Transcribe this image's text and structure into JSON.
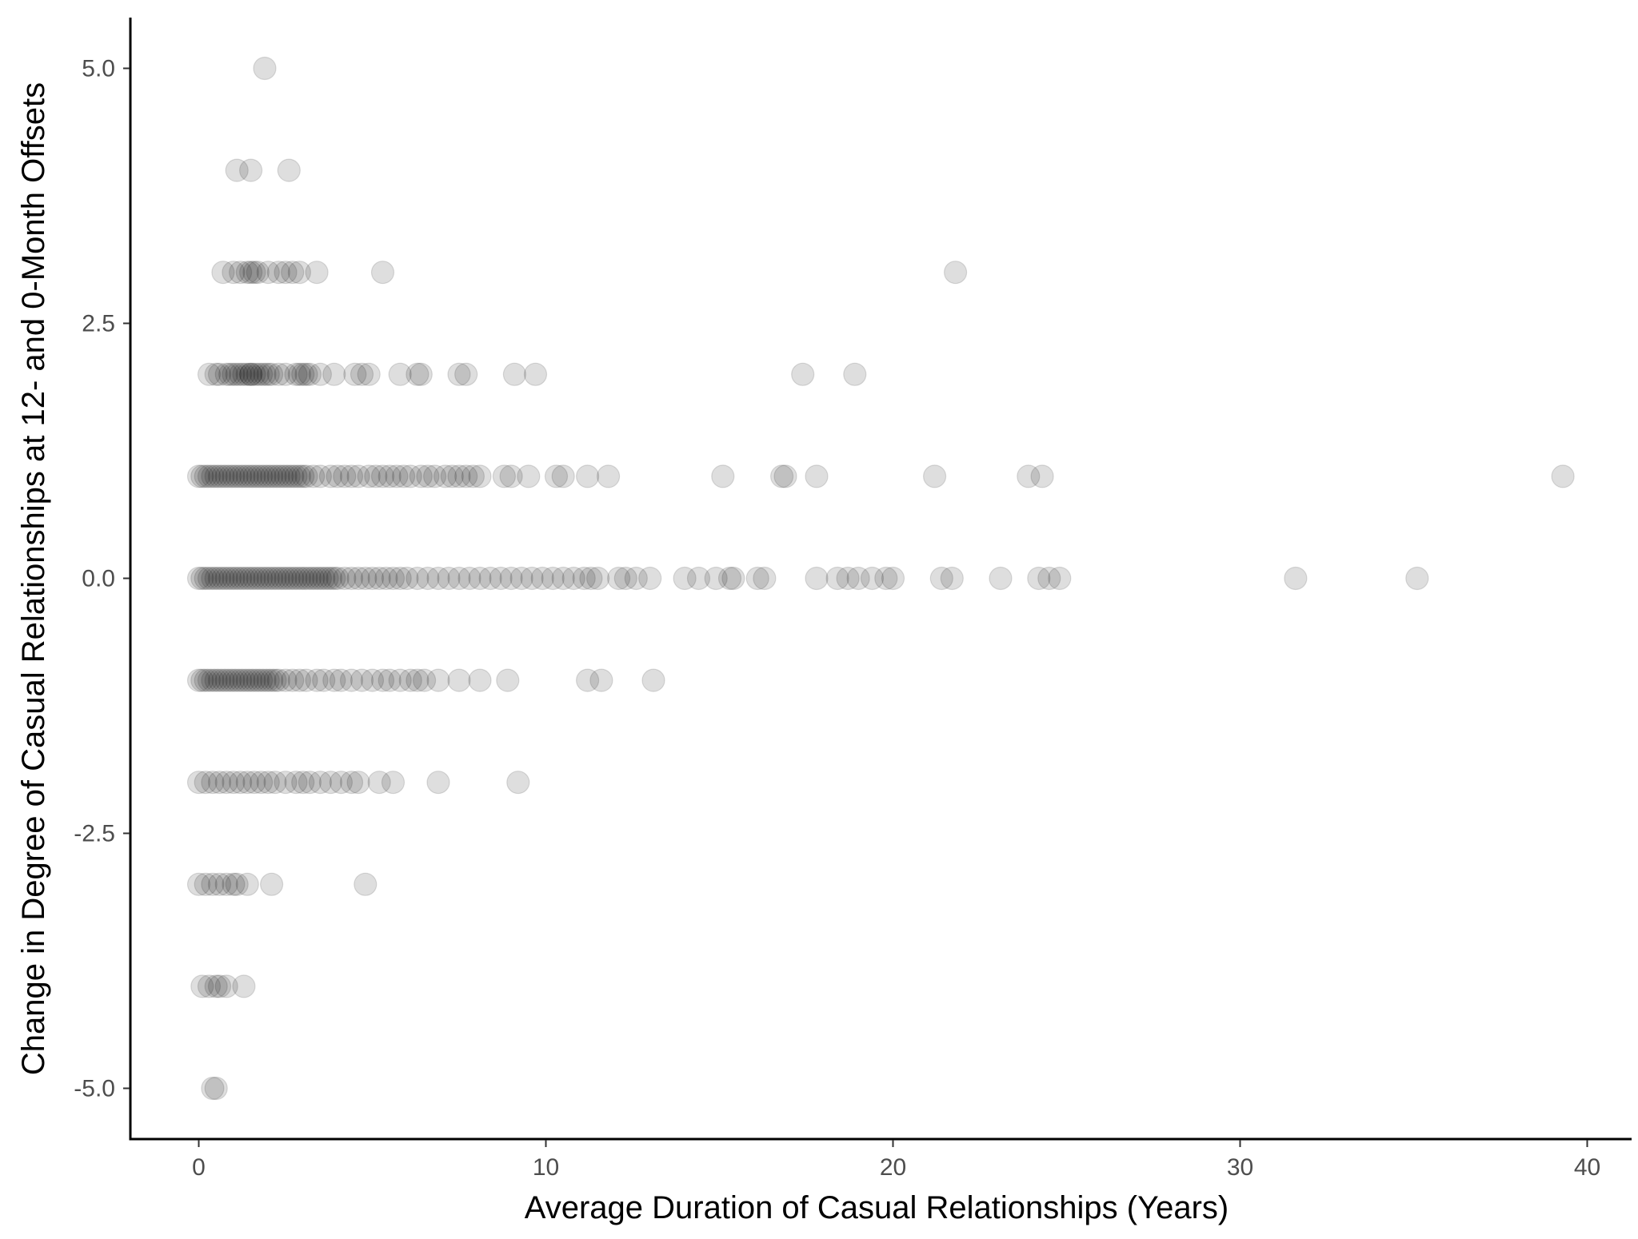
{
  "chart_data": {
    "type": "scatter",
    "xlabel": "Average Duration of Casual Relationships (Years)",
    "ylabel": "Change in Degree of Casual Relationships at 12- and 0-Month Offsets",
    "xlim": [
      -2,
      41
    ],
    "ylim": [
      -5.5,
      5.5
    ],
    "x_ticks": [
      0,
      10,
      20,
      30,
      40
    ],
    "x_tick_labels": [
      "0",
      "10",
      "20",
      "30",
      "40"
    ],
    "y_ticks": [
      5.0,
      2.5,
      0.0,
      -2.5,
      -5.0
    ],
    "y_tick_labels": [
      "5.0",
      "2.5",
      "0.0",
      "-2.5",
      "-5.0"
    ],
    "grid": false,
    "legend": "none",
    "point_color": "#000000",
    "point_opacity": 0.13,
    "series": [
      {
        "points": [
          {
            "y": 5,
            "x": [
              1.9
            ]
          },
          {
            "y": 4,
            "x": [
              1.1,
              1.5,
              2.6
            ]
          },
          {
            "y": 3,
            "x": [
              0.7,
              1.0,
              1.2,
              1.4,
              1.5,
              1.6,
              1.7,
              2.0,
              2.3,
              2.5,
              2.7,
              2.9,
              3.4,
              5.3,
              21.8
            ]
          },
          {
            "y": 2,
            "x": [
              0.3,
              0.5,
              0.6,
              0.8,
              0.9,
              1.0,
              1.1,
              1.2,
              1.3,
              1.4,
              1.5,
              1.5,
              1.6,
              1.7,
              1.8,
              1.9,
              2.0,
              2.1,
              2.3,
              2.5,
              2.8,
              2.9,
              3.0,
              3.1,
              3.2,
              3.5,
              3.9,
              4.5,
              4.7,
              4.9,
              5.8,
              6.3,
              6.4,
              7.5,
              7.7,
              9.1,
              9.7,
              17.4,
              18.9
            ]
          },
          {
            "y": 1,
            "x": [
              0.0,
              0.1,
              0.2,
              0.3,
              0.4,
              0.5,
              0.6,
              0.7,
              0.8,
              0.9,
              1.0,
              1.1,
              1.2,
              1.3,
              1.4,
              1.5,
              1.6,
              1.7,
              1.8,
              1.9,
              2.0,
              2.1,
              2.2,
              2.3,
              2.4,
              2.5,
              2.6,
              2.7,
              2.8,
              2.9,
              3.0,
              3.1,
              3.3,
              3.5,
              3.8,
              4.0,
              4.2,
              4.4,
              4.6,
              4.9,
              5.1,
              5.3,
              5.5,
              5.7,
              5.9,
              6.1,
              6.4,
              6.6,
              6.8,
              7.1,
              7.3,
              7.5,
              7.7,
              7.9,
              8.1,
              8.8,
              9.0,
              9.5,
              10.3,
              10.5,
              11.2,
              11.8,
              15.1,
              16.8,
              16.9,
              17.8,
              21.2,
              23.9,
              24.3,
              39.3
            ]
          },
          {
            "y": 0,
            "x": [
              0.0,
              0.1,
              0.2,
              0.3,
              0.4,
              0.5,
              0.6,
              0.7,
              0.8,
              0.9,
              1.0,
              1.1,
              1.2,
              1.3,
              1.4,
              1.5,
              1.6,
              1.7,
              1.8,
              1.9,
              2.0,
              2.1,
              2.2,
              2.3,
              2.4,
              2.5,
              2.6,
              2.7,
              2.8,
              2.9,
              3.0,
              3.1,
              3.2,
              3.3,
              3.4,
              3.5,
              3.6,
              3.7,
              3.8,
              3.9,
              4.0,
              4.2,
              4.4,
              4.6,
              4.8,
              5.0,
              5.2,
              5.4,
              5.6,
              5.8,
              6.0,
              6.3,
              6.6,
              6.9,
              7.2,
              7.5,
              7.8,
              8.1,
              8.4,
              8.7,
              9.0,
              9.3,
              9.6,
              9.9,
              10.2,
              10.5,
              10.8,
              11.1,
              11.3,
              11.5,
              12.1,
              12.3,
              12.6,
              13.0,
              14.0,
              14.4,
              14.9,
              15.3,
              15.4,
              16.1,
              16.3,
              17.8,
              18.4,
              18.7,
              19.0,
              19.4,
              19.8,
              20.0,
              21.4,
              21.7,
              23.1,
              24.2,
              24.5,
              24.8,
              31.6,
              35.1
            ]
          },
          {
            "y": -1,
            "x": [
              0.0,
              0.1,
              0.2,
              0.3,
              0.4,
              0.5,
              0.6,
              0.7,
              0.8,
              0.9,
              1.0,
              1.1,
              1.2,
              1.3,
              1.4,
              1.5,
              1.6,
              1.7,
              1.8,
              1.9,
              2.0,
              2.1,
              2.2,
              2.3,
              2.5,
              2.7,
              2.9,
              3.1,
              3.4,
              3.6,
              3.9,
              4.1,
              4.4,
              4.7,
              5.0,
              5.3,
              5.5,
              5.8,
              6.1,
              6.3,
              6.5,
              6.9,
              7.5,
              8.1,
              8.9,
              11.2,
              11.6,
              13.1
            ]
          },
          {
            "y": -2,
            "x": [
              0.0,
              0.2,
              0.4,
              0.6,
              0.8,
              1.0,
              1.2,
              1.4,
              1.6,
              1.8,
              2.0,
              2.2,
              2.5,
              2.8,
              3.0,
              3.2,
              3.5,
              3.8,
              4.1,
              4.4,
              4.6,
              5.2,
              5.6,
              6.9,
              9.2
            ]
          },
          {
            "y": -3,
            "x": [
              0.0,
              0.2,
              0.4,
              0.6,
              0.8,
              1.0,
              1.1,
              1.4,
              2.1,
              4.8
            ]
          },
          {
            "y": -4,
            "x": [
              0.1,
              0.3,
              0.5,
              0.6,
              0.8,
              1.3
            ]
          },
          {
            "y": -5,
            "x": [
              0.4,
              0.5
            ]
          }
        ]
      }
    ]
  }
}
